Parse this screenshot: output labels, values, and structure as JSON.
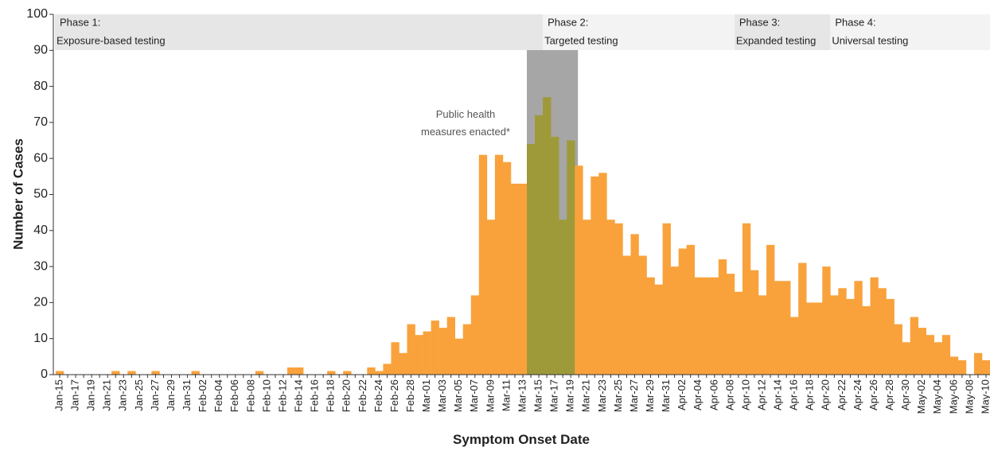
{
  "chart_data": {
    "type": "bar",
    "x_label": "Symptom Onset Date",
    "y_label": "Number of Cases",
    "annotation": [
      "Public health",
      "measures enacted*"
    ],
    "phases": [
      {
        "label": "Phase 1:",
        "description": "Exposure-based testing"
      },
      {
        "label": "Phase 2:",
        "description": "Targeted testing"
      },
      {
        "label": "Phase 3:",
        "description": "Expanded testing"
      },
      {
        "label": "Phase 4:",
        "description": "Universal testing"
      }
    ],
    "color": "#f9a23c",
    "highlight_color": "#9e9a3a",
    "ylim": [
      0,
      100
    ],
    "yticks": [
      0,
      10,
      20,
      30,
      40,
      50,
      60,
      70,
      80,
      90,
      100
    ],
    "grid": false,
    "categories": [
      "Jan-15",
      null,
      "Jan-17",
      null,
      "Jan-19",
      null,
      "Jan-21",
      null,
      "Jan-23",
      null,
      "Jan-25",
      null,
      "Jan-27",
      null,
      "Jan-29",
      null,
      "Jan-31",
      null,
      "Feb-02",
      null,
      "Feb-04",
      null,
      "Feb-06",
      null,
      "Feb-08",
      null,
      "Feb-10",
      null,
      "Feb-12",
      null,
      "Feb-14",
      null,
      "Feb-16",
      null,
      "Feb-18",
      null,
      "Feb-20",
      null,
      "Feb-22",
      null,
      "Feb-24",
      null,
      "Feb-26",
      null,
      "Feb-28",
      null,
      "Mar-01",
      null,
      "Mar-03",
      null,
      "Mar-05",
      null,
      "Mar-07",
      null,
      "Mar-09",
      null,
      "Mar-11",
      null,
      "Mar-13",
      null,
      "Mar-15",
      null,
      "Mar-17",
      null,
      "Mar-19",
      null,
      "Mar-21",
      null,
      "Mar-23",
      null,
      "Mar-25",
      null,
      "Mar-27",
      null,
      "Mar-29",
      null,
      "Mar-31",
      null,
      "Apr-02",
      null,
      "Apr-04",
      null,
      "Apr-06",
      null,
      "Apr-08",
      null,
      "Apr-10",
      null,
      "Apr-12",
      null,
      "Apr-14",
      null,
      "Apr-16",
      null,
      "Apr-18",
      null,
      "Apr-20",
      null,
      "Apr-22",
      null,
      "Apr-24",
      null,
      "Apr-26",
      null,
      "Apr-28",
      null,
      "Apr-30",
      null,
      "May-02",
      null,
      "May-04",
      null,
      "May-06",
      null,
      "May-08",
      null,
      "May-10"
    ],
    "values": [
      1,
      0,
      0,
      0,
      0,
      0,
      0,
      1,
      0,
      1,
      0,
      0,
      1,
      0,
      0,
      0,
      0,
      1,
      0,
      0,
      0,
      0,
      0,
      0,
      0,
      1,
      0,
      0,
      0,
      2,
      2,
      0,
      0,
      0,
      1,
      0,
      1,
      0,
      0,
      2,
      1,
      3,
      9,
      6,
      14,
      11,
      12,
      15,
      13,
      16,
      10,
      14,
      22,
      61,
      43,
      61,
      59,
      53,
      53,
      64,
      72,
      77,
      66,
      43,
      65,
      58,
      43,
      55,
      56,
      43,
      42,
      33,
      39,
      33,
      27,
      25,
      42,
      30,
      35,
      36,
      27,
      27,
      27,
      32,
      28,
      23,
      42,
      29,
      22,
      36,
      26,
      26,
      16,
      31,
      20,
      20,
      30,
      22,
      24,
      21,
      26,
      19,
      27,
      24,
      21,
      14,
      9,
      16,
      13,
      11,
      9,
      11,
      5,
      4,
      0,
      6,
      4
    ]
  }
}
